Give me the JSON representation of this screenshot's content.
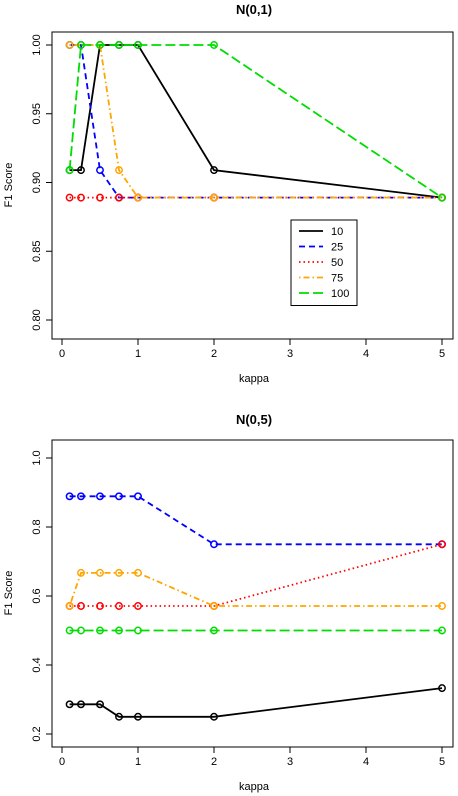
{
  "chart_data": [
    {
      "type": "line",
      "title": "N(0,1)",
      "xlabel": "kappa",
      "ylabel": "F1 Score",
      "xlim": [
        0,
        5
      ],
      "ylim": [
        0.8,
        1.0
      ],
      "xticks": [
        0,
        1,
        2,
        3,
        4,
        5
      ],
      "yticks": [
        0.8,
        0.85,
        0.9,
        0.95,
        1.0
      ],
      "ytick_labels": [
        "0.80",
        "0.85",
        "0.90",
        "0.95",
        "1.00"
      ],
      "x": [
        0.1,
        0.25,
        0.5,
        0.75,
        1,
        2,
        5
      ],
      "grid": false,
      "legend": "center-right",
      "series": [
        {
          "name": "10",
          "color": "#000000",
          "dash": "solid",
          "values": [
            0.909,
            0.909,
            1.0,
            1.0,
            1.0,
            0.909,
            0.889
          ]
        },
        {
          "name": "25",
          "color": "#0000ff",
          "dash": "dashed",
          "values": [
            1.0,
            1.0,
            0.909,
            0.889,
            0.889,
            0.889,
            0.889
          ]
        },
        {
          "name": "50",
          "color": "#ff0000",
          "dash": "dotted",
          "values": [
            0.889,
            0.889,
            0.889,
            0.889,
            0.889,
            0.889,
            0.889
          ]
        },
        {
          "name": "75",
          "color": "#ffa500",
          "dash": "dotdash",
          "values": [
            1.0,
            1.0,
            1.0,
            0.909,
            0.889,
            0.889,
            0.889
          ]
        },
        {
          "name": "100",
          "color": "#00dd00",
          "dash": "longdash",
          "values": [
            0.909,
            1.0,
            1.0,
            1.0,
            1.0,
            1.0,
            0.889
          ]
        }
      ]
    },
    {
      "type": "line",
      "title": "N(0,5)",
      "xlabel": "kappa",
      "ylabel": "F1 Score",
      "xlim": [
        0,
        5
      ],
      "ylim": [
        0.2,
        1.0
      ],
      "xticks": [
        0,
        1,
        2,
        3,
        4,
        5
      ],
      "yticks": [
        0.2,
        0.4,
        0.6,
        0.8,
        1.0
      ],
      "ytick_labels": [
        "0.2",
        "0.4",
        "0.6",
        "0.8",
        "1.0"
      ],
      "x": [
        0.1,
        0.25,
        0.5,
        0.75,
        1,
        2,
        5
      ],
      "grid": false,
      "series": [
        {
          "color": "#000000",
          "dash": "solid",
          "values": [
            0.286,
            0.286,
            0.286,
            0.25,
            0.25,
            0.25,
            0.333
          ]
        },
        {
          "color": "#0000ff",
          "dash": "dashed",
          "values": [
            0.889,
            0.889,
            0.889,
            0.889,
            0.889,
            0.75,
            0.75
          ]
        },
        {
          "color": "#ff0000",
          "dash": "dotted",
          "values": [
            0.571,
            0.571,
            0.571,
            0.571,
            0.571,
            0.571,
            0.75
          ]
        },
        {
          "color": "#ffa500",
          "dash": "dotdash",
          "values": [
            0.571,
            0.667,
            0.667,
            0.667,
            0.667,
            0.571,
            0.571
          ]
        },
        {
          "color": "#00dd00",
          "dash": "longdash",
          "values": [
            0.5,
            0.5,
            0.5,
            0.5,
            0.5,
            0.5,
            0.5
          ]
        }
      ]
    }
  ]
}
